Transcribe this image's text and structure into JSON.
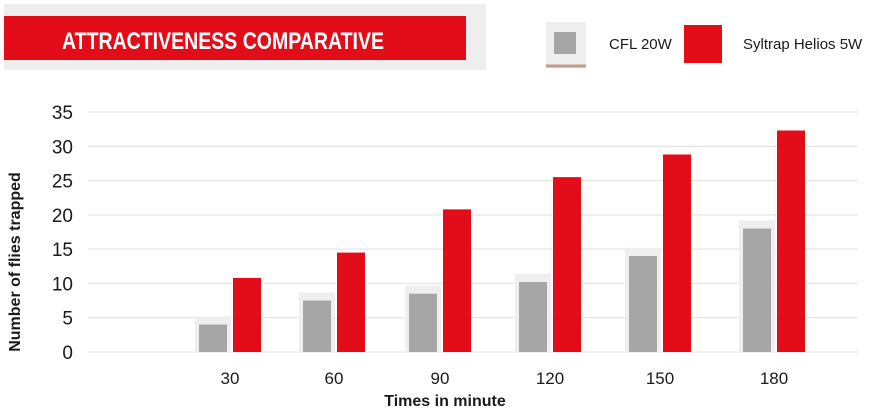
{
  "chart_data": {
    "type": "bar",
    "title": "ATTRACTIVENESS COMPARATIVE",
    "categories": [
      "30",
      "60",
      "90",
      "120",
      "150",
      "180"
    ],
    "series": [
      {
        "name": "CFL 20W",
        "values": [
          4,
          7.5,
          8.5,
          10.2,
          14,
          18
        ],
        "color": "#a6a6a6"
      },
      {
        "name": "Syltrap Helios 5W",
        "values": [
          10.8,
          14.5,
          20.8,
          25.5,
          28.8,
          32.3
        ],
        "color": "#e30d19"
      }
    ],
    "xlabel": "Times in minute",
    "ylabel": "Number of flies trapped",
    "ylim": [
      0,
      35
    ],
    "yticks": [
      0,
      5,
      10,
      15,
      20,
      25,
      30,
      35
    ],
    "grid": true,
    "legend_position": "top-right"
  }
}
